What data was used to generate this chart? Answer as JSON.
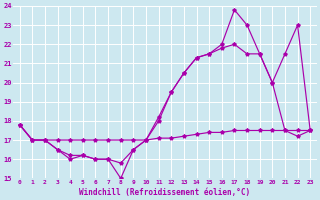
{
  "xlabel": "Windchill (Refroidissement éolien,°C)",
  "xlim": [
    -0.5,
    23.5
  ],
  "ylim": [
    15,
    24
  ],
  "yticks": [
    15,
    16,
    17,
    18,
    19,
    20,
    21,
    22,
    23,
    24
  ],
  "xticks": [
    0,
    1,
    2,
    3,
    4,
    5,
    6,
    7,
    8,
    9,
    10,
    11,
    12,
    13,
    14,
    15,
    16,
    17,
    18,
    19,
    20,
    21,
    22,
    23
  ],
  "bg_color": "#cde8f0",
  "line_color": "#aa00aa",
  "grid_color": "#ffffff",
  "series1_x": [
    0,
    1,
    2,
    3,
    4,
    5,
    6,
    7,
    8,
    9,
    10,
    11,
    12,
    13,
    14,
    15,
    16,
    17,
    18,
    19,
    20,
    21,
    22,
    23
  ],
  "series1_y": [
    17.8,
    17.0,
    17.0,
    16.5,
    16.0,
    16.2,
    16.0,
    16.0,
    15.0,
    16.5,
    17.0,
    18.2,
    19.5,
    20.5,
    21.3,
    21.5,
    21.8,
    22.0,
    21.5,
    21.5,
    20.0,
    17.5,
    17.2,
    17.5
  ],
  "series2_x": [
    0,
    1,
    2,
    3,
    4,
    5,
    6,
    7,
    8,
    9,
    10,
    11,
    12,
    13,
    14,
    15,
    16,
    17,
    18,
    19,
    20,
    21,
    22,
    23
  ],
  "series2_y": [
    17.8,
    17.0,
    17.0,
    16.5,
    16.2,
    16.2,
    16.0,
    16.0,
    15.8,
    16.5,
    17.0,
    18.0,
    19.5,
    20.5,
    21.3,
    21.5,
    22.0,
    23.8,
    23.0,
    21.5,
    20.0,
    21.5,
    23.0,
    17.5
  ],
  "series3_x": [
    0,
    1,
    2,
    3,
    4,
    5,
    6,
    7,
    8,
    9,
    10,
    11,
    12,
    13,
    14,
    15,
    16,
    17,
    18,
    19,
    20,
    21,
    22,
    23
  ],
  "series3_y": [
    17.8,
    17.0,
    17.0,
    17.0,
    17.0,
    17.0,
    17.0,
    17.0,
    17.0,
    17.0,
    17.0,
    17.1,
    17.1,
    17.2,
    17.3,
    17.4,
    17.4,
    17.5,
    17.5,
    17.5,
    17.5,
    17.5,
    17.5,
    17.5
  ]
}
